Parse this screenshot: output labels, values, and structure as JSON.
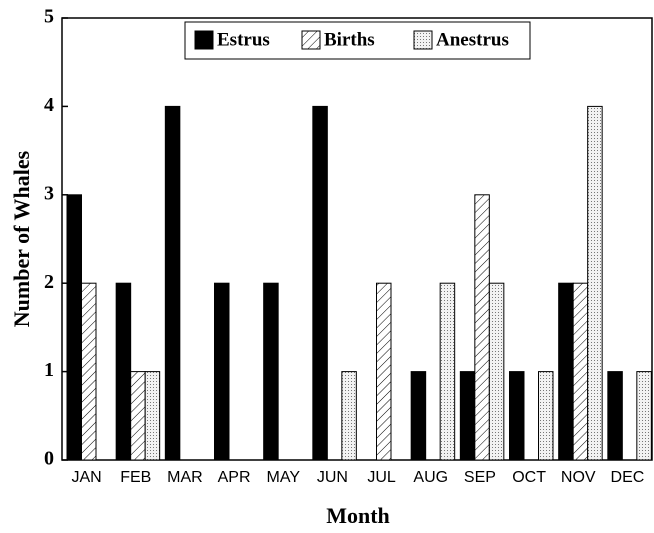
{
  "chart_data": {
    "type": "bar",
    "x_label": "Month",
    "y_label": "Number of Whales",
    "categories": [
      "JAN",
      "FEB",
      "MAR",
      "APR",
      "MAY",
      "JUN",
      "JUL",
      "AUG",
      "SEP",
      "OCT",
      "NOV",
      "DEC"
    ],
    "series": [
      {
        "name": "Estrus",
        "color": "#000000",
        "pattern": "solid",
        "values": [
          3,
          2,
          4,
          2,
          2,
          4,
          0,
          1,
          1,
          1,
          2,
          1
        ]
      },
      {
        "name": "Births",
        "color": "#ffffff",
        "pattern": "hatch",
        "values": [
          2,
          1,
          0,
          0,
          0,
          0,
          2,
          0,
          3,
          0,
          2,
          0
        ]
      },
      {
        "name": "Anestrus",
        "color": "#eeeeee",
        "pattern": "dots",
        "values": [
          0,
          1,
          0,
          0,
          0,
          1,
          0,
          2,
          2,
          1,
          4,
          1
        ]
      }
    ],
    "ylim": [
      0,
      5
    ],
    "yticks": [
      0,
      1,
      2,
      3,
      4,
      5
    ],
    "grid": false,
    "legend": "top"
  }
}
